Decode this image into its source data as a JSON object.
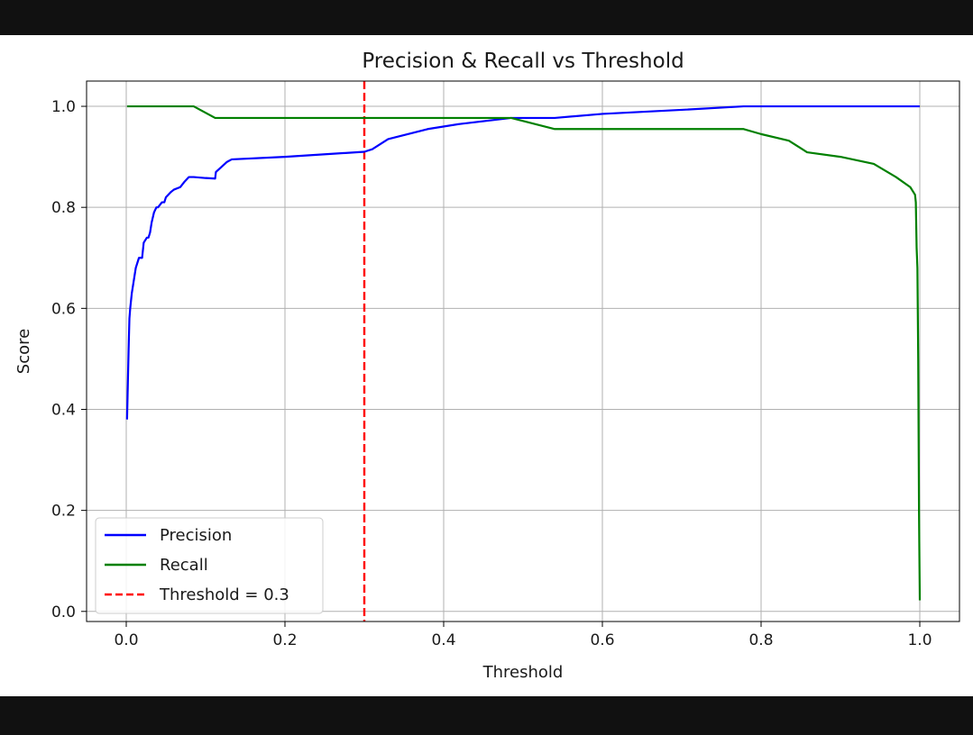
{
  "chart_data": {
    "type": "line",
    "title": "Precision & Recall vs Threshold",
    "xlabel": "Threshold",
    "ylabel": "Score",
    "xlim": [
      -0.05,
      1.05
    ],
    "ylim": [
      -0.02,
      1.05
    ],
    "xticks": [
      0.0,
      0.2,
      0.4,
      0.6,
      0.8,
      1.0
    ],
    "xtick_labels": [
      "0.0",
      "0.2",
      "0.4",
      "0.6",
      "0.8",
      "1.0"
    ],
    "yticks": [
      0.0,
      0.2,
      0.4,
      0.6,
      0.8,
      1.0
    ],
    "ytick_labels": [
      "0.0",
      "0.2",
      "0.4",
      "0.6",
      "0.8",
      "1.0"
    ],
    "grid": true,
    "legend_position": "lower-left",
    "series": [
      {
        "name": "Precision",
        "color": "#0000ff",
        "style": "solid",
        "x": [
          0.001,
          0.002,
          0.003,
          0.004,
          0.005,
          0.007,
          0.008,
          0.01,
          0.012,
          0.014,
          0.016,
          0.02,
          0.022,
          0.026,
          0.028,
          0.03,
          0.032,
          0.035,
          0.038,
          0.04,
          0.045,
          0.048,
          0.05,
          0.056,
          0.06,
          0.068,
          0.073,
          0.079,
          0.085,
          0.1,
          0.112,
          0.113,
          0.12,
          0.127,
          0.133,
          0.2,
          0.3,
          0.31,
          0.32,
          0.33,
          0.38,
          0.42,
          0.485,
          0.54,
          0.6,
          0.7,
          0.778,
          0.8,
          0.9,
          1.0
        ],
        "values": [
          0.38,
          0.45,
          0.52,
          0.58,
          0.6,
          0.63,
          0.64,
          0.66,
          0.68,
          0.69,
          0.7,
          0.7,
          0.73,
          0.74,
          0.74,
          0.75,
          0.77,
          0.79,
          0.8,
          0.8,
          0.81,
          0.81,
          0.82,
          0.83,
          0.835,
          0.84,
          0.85,
          0.86,
          0.86,
          0.858,
          0.857,
          0.87,
          0.88,
          0.89,
          0.895,
          0.9,
          0.91,
          0.915,
          0.925,
          0.935,
          0.955,
          0.965,
          0.977,
          0.977,
          0.985,
          0.993,
          1.0,
          1.0,
          1.0,
          1.0
        ]
      },
      {
        "name": "Recall",
        "color": "#008000",
        "style": "solid",
        "x": [
          0.001,
          0.085,
          0.112,
          0.12,
          0.3,
          0.485,
          0.54,
          0.6,
          0.7,
          0.778,
          0.8,
          0.835,
          0.858,
          0.9,
          0.942,
          0.97,
          0.988,
          0.994,
          0.995,
          0.996,
          0.997,
          0.998,
          0.999,
          1.0
        ],
        "values": [
          1.0,
          1.0,
          0.977,
          0.977,
          0.977,
          0.977,
          0.955,
          0.955,
          0.955,
          0.955,
          0.945,
          0.932,
          0.909,
          0.9,
          0.886,
          0.86,
          0.84,
          0.825,
          0.81,
          0.72,
          0.68,
          0.5,
          0.2,
          0.022
        ]
      }
    ],
    "reference_line": {
      "name": "Threshold = 0.3",
      "x": 0.3,
      "color": "#ff0000",
      "style": "dashed"
    }
  }
}
